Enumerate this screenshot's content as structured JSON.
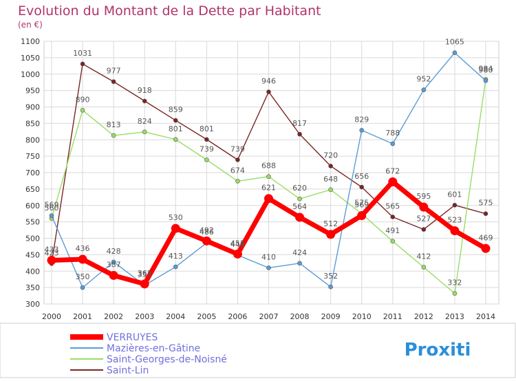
{
  "colors": {
    "title": "#b0336a",
    "axis_text": "#333333",
    "grid": "#d9d9d9",
    "legend_text": "#7070dd",
    "label_text": "#555555"
  },
  "brand": {
    "logo_text": "Proxiti"
  },
  "chart_data": {
    "type": "line",
    "title": "Evolution du Montant de la Dette par Habitant",
    "subtitle": "(en €)",
    "xlabel": "",
    "ylabel": "",
    "x": [
      2000,
      2001,
      2002,
      2003,
      2004,
      2005,
      2006,
      2007,
      2008,
      2009,
      2010,
      2011,
      2012,
      2013,
      2014
    ],
    "ylim": [
      300,
      1100
    ],
    "yticks": [
      300,
      350,
      400,
      450,
      500,
      550,
      600,
      650,
      700,
      750,
      800,
      850,
      900,
      950,
      1000,
      1050,
      1100
    ],
    "grid": true,
    "legend_position": "bottom-left",
    "series": [
      {
        "name": "VERRUYES",
        "color": "#ff0000",
        "values": [
          433,
          436,
          387,
          361,
          530,
          492,
          452,
          621,
          564,
          512,
          569,
          672,
          595,
          523,
          469
        ]
      },
      {
        "name": "Mazières-en-Gâtine",
        "color": "#5b9bd5",
        "values": [
          569,
          350,
          428,
          357,
          413,
          486,
          449,
          410,
          424,
          352,
          829,
          788,
          952,
          1065,
          980
        ]
      },
      {
        "name": "Saint-Georges-de-Noisné",
        "color": "#99dd66",
        "values": [
          560,
          890,
          813,
          824,
          801,
          739,
          674,
          688,
          620,
          648,
          575,
          491,
          412,
          332,
          984
        ]
      },
      {
        "name": "Saint-Lin",
        "color": "#7a2424",
        "values": [
          423,
          1031,
          977,
          918,
          859,
          801,
          739,
          946,
          817,
          720,
          656,
          565,
          527,
          601,
          575
        ]
      }
    ]
  }
}
